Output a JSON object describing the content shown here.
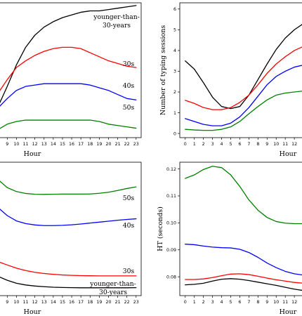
{
  "chart_data": [
    {
      "type": "line",
      "xlabel": "Hour",
      "ylabel": "",
      "x": [
        8,
        9,
        10,
        11,
        12,
        13,
        14,
        15,
        16,
        17,
        18,
        19,
        20,
        21,
        22,
        23
      ],
      "xticks": [
        "8",
        "9",
        "10",
        "11",
        "12",
        "13",
        "14",
        "15",
        "16",
        "17",
        "18",
        "19",
        "20",
        "21",
        "22",
        "23"
      ],
      "yticks": [],
      "ylim": [
        0,
        100
      ],
      "series": [
        {
          "name": "younger-than-30-years",
          "label_lines": [
            "younger-than-",
            "30-years"
          ],
          "color": "#000000",
          "values": [
            23,
            38,
            54,
            67,
            76,
            82,
            86,
            89,
            91,
            93,
            94,
            94,
            95,
            96,
            97,
            98
          ]
        },
        {
          "name": "30s",
          "label_lines": [
            "30s"
          ],
          "color": "#ff0000",
          "values": [
            33,
            43,
            52,
            57,
            61,
            64,
            66,
            67,
            67,
            66,
            63,
            60,
            57,
            55,
            53,
            52
          ]
        },
        {
          "name": "40s",
          "label_lines": [
            "40s"
          ],
          "color": "#0000ff",
          "values": [
            22,
            29,
            35,
            38,
            39,
            40,
            40,
            40,
            40,
            40,
            39,
            37,
            35,
            32,
            29,
            28
          ]
        },
        {
          "name": "50s",
          "label_lines": [
            "50s"
          ],
          "color": "#008000",
          "values": [
            6,
            10,
            12,
            13,
            13,
            13,
            13,
            13,
            13,
            13,
            13,
            12,
            10,
            9,
            8,
            7
          ]
        }
      ]
    },
    {
      "type": "line",
      "xlabel": "Hour",
      "ylabel": "Number of typing sessions",
      "x": [
        0,
        1,
        2,
        3,
        4,
        5,
        6,
        7,
        8,
        9,
        10,
        11,
        12,
        13
      ],
      "xticks": [
        "0",
        "1",
        "2",
        "3",
        "4",
        "5",
        "6",
        "7",
        "8",
        "9",
        "10",
        "11",
        "12"
      ],
      "yticks": [
        "0",
        "1",
        "2",
        "3",
        "4",
        "5",
        "6"
      ],
      "ylim": [
        -0.2,
        6.3
      ],
      "series": [
        {
          "name": "younger-than-30-years",
          "color": "#000000",
          "values": [
            3.5,
            3.1,
            2.45,
            1.75,
            1.3,
            1.2,
            1.3,
            1.85,
            2.6,
            3.35,
            4.05,
            4.6,
            5.0,
            5.3
          ]
        },
        {
          "name": "30s",
          "color": "#ff0000",
          "values": [
            1.6,
            1.45,
            1.25,
            1.15,
            1.15,
            1.25,
            1.5,
            1.85,
            2.35,
            2.9,
            3.35,
            3.7,
            4.0,
            4.2
          ]
        },
        {
          "name": "40s",
          "color": "#0000ff",
          "values": [
            0.72,
            0.58,
            0.44,
            0.37,
            0.37,
            0.5,
            0.8,
            1.25,
            1.8,
            2.35,
            2.75,
            3.0,
            3.2,
            3.3
          ]
        },
        {
          "name": "50s",
          "color": "#008000",
          "values": [
            0.2,
            0.17,
            0.15,
            0.15,
            0.2,
            0.32,
            0.58,
            0.95,
            1.3,
            1.62,
            1.85,
            1.95,
            2.0,
            2.05
          ]
        }
      ]
    },
    {
      "type": "line",
      "xlabel": "Hour",
      "ylabel": "",
      "x": [
        8,
        9,
        10,
        11,
        12,
        13,
        14,
        15,
        16,
        17,
        18,
        19,
        20,
        21,
        22,
        23
      ],
      "xticks": [
        "8",
        "9",
        "10",
        "11",
        "12",
        "13",
        "14",
        "15",
        "16",
        "17",
        "18",
        "19",
        "20",
        "21",
        "22",
        "23"
      ],
      "yticks": [],
      "ylim": [
        0,
        100
      ],
      "series": [
        {
          "name": "younger-than-30-years",
          "label_lines": [
            "younger-than-",
            "30-years"
          ],
          "color": "#000000",
          "values": [
            14.5,
            11.5,
            9.3,
            8,
            7.2,
            6.7,
            6.3,
            6.1,
            6,
            5.9,
            5.9,
            5.9,
            5.9,
            5.9,
            5.9,
            6
          ]
        },
        {
          "name": "30s",
          "label_lines": [
            "30s"
          ],
          "color": "#ff0000",
          "values": [
            25.5,
            23,
            20.6,
            18.8,
            17.5,
            16.6,
            16,
            15.5,
            15.2,
            15,
            14.9,
            14.8,
            14.8,
            14.8,
            14.8,
            14.8
          ]
        },
        {
          "name": "40s",
          "label_lines": [
            "40s"
          ],
          "color": "#0000ff",
          "values": [
            66,
            60,
            56,
            54,
            53,
            52.5,
            52.5,
            52.7,
            53.1,
            53.7,
            54.4,
            55.1,
            55.8,
            56.5,
            57.1,
            57.6
          ]
        },
        {
          "name": "50s",
          "label_lines": [
            "50s"
          ],
          "color": "#008000",
          "values": [
            87,
            81,
            78,
            76.6,
            76,
            75.9,
            76,
            76.1,
            76.1,
            76.1,
            76.2,
            76.7,
            77.5,
            78.8,
            80.3,
            81.5
          ]
        }
      ]
    },
    {
      "type": "line",
      "xlabel": "Hour",
      "ylabel": "HT (seconds)",
      "x": [
        0,
        1,
        2,
        3,
        4,
        5,
        6,
        7,
        8,
        9,
        10,
        11,
        12,
        13
      ],
      "xticks": [
        "0",
        "1",
        "2",
        "3",
        "4",
        "5",
        "6",
        "7",
        "8",
        "9",
        "10",
        "11",
        "12"
      ],
      "yticks": [
        "0.08",
        "0.09",
        "0.10",
        "0.11",
        "0.12"
      ],
      "ytick_values": [
        0.08,
        0.09,
        0.1,
        0.11,
        0.12
      ],
      "ylim": [
        0.073,
        0.1225
      ],
      "series": [
        {
          "name": "younger-than-30-years",
          "color": "#000000",
          "values": [
            0.077,
            0.0772,
            0.0776,
            0.0784,
            0.0791,
            0.0793,
            0.0791,
            0.0786,
            0.078,
            0.0774,
            0.0768,
            0.0761,
            0.0754,
            0.0749
          ]
        },
        {
          "name": "30s",
          "color": "#ff0000",
          "values": [
            0.079,
            0.079,
            0.0792,
            0.0797,
            0.0804,
            0.081,
            0.0811,
            0.0808,
            0.0802,
            0.0795,
            0.0789,
            0.0784,
            0.0779,
            0.0776
          ]
        },
        {
          "name": "40s",
          "color": "#0000ff",
          "values": [
            0.0921,
            0.0919,
            0.0914,
            0.091,
            0.0908,
            0.0907,
            0.0902,
            0.089,
            0.0872,
            0.0851,
            0.0834,
            0.082,
            0.0811,
            0.0806
          ]
        },
        {
          "name": "50s",
          "color": "#008000",
          "values": [
            0.1165,
            0.1178,
            0.1198,
            0.121,
            0.1205,
            0.1178,
            0.1135,
            0.1085,
            0.1047,
            0.102,
            0.1005,
            0.0999,
            0.0997,
            0.0997
          ]
        }
      ]
    }
  ]
}
